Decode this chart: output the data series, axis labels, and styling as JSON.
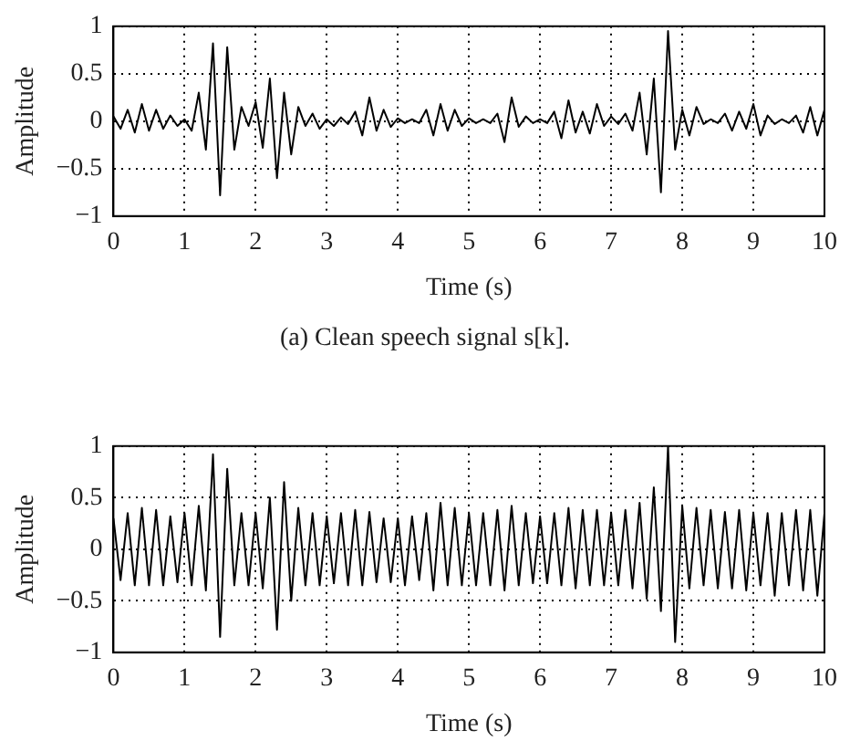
{
  "chart_data": [
    {
      "type": "line",
      "xlabel": "Time (s)",
      "ylabel": "Amplitude",
      "xlim": [
        0,
        10
      ],
      "xticks": [
        0,
        1,
        2,
        3,
        4,
        5,
        6,
        7,
        8,
        9,
        10
      ],
      "ylim": [
        -1,
        1
      ],
      "yticks": [
        -1,
        -0.5,
        0,
        0.5,
        1
      ],
      "grid": true,
      "marker": "none",
      "line_style": "solid",
      "annotations": [
        "(a) Clean speech signal s[k]."
      ],
      "x": [
        0,
        0.1,
        0.2,
        0.3,
        0.4,
        0.5,
        0.6,
        0.7,
        0.8,
        0.9,
        1,
        1.1,
        1.2,
        1.3,
        1.4,
        1.5,
        1.6,
        1.7,
        1.8,
        1.9,
        2,
        2.1,
        2.2,
        2.3,
        2.4,
        2.5,
        2.6,
        2.7,
        2.8,
        2.9,
        3,
        3.1,
        3.2,
        3.3,
        3.4,
        3.5,
        3.6,
        3.7,
        3.8,
        3.9,
        4,
        4.1,
        4.2,
        4.3,
        4.4,
        4.5,
        4.6,
        4.7,
        4.8,
        4.9,
        5,
        5.1,
        5.2,
        5.3,
        5.4,
        5.5,
        5.6,
        5.7,
        5.8,
        5.9,
        6,
        6.1,
        6.2,
        6.3,
        6.4,
        6.5,
        6.6,
        6.7,
        6.8,
        6.9,
        7,
        7.1,
        7.2,
        7.3,
        7.4,
        7.5,
        7.6,
        7.7,
        7.8,
        7.9,
        8,
        8.1,
        8.2,
        8.3,
        8.4,
        8.5,
        8.6,
        8.7,
        8.8,
        8.9,
        9,
        9.1,
        9.2,
        9.3,
        9.4,
        9.5,
        9.6,
        9.7,
        9.8,
        9.9,
        10
      ],
      "series": [
        {
          "color": "#000000",
          "values": [
            0.05,
            -0.08,
            0.12,
            -0.12,
            0.18,
            -0.1,
            0.12,
            -0.08,
            0.06,
            -0.05,
            0.02,
            -0.1,
            0.3,
            -0.3,
            0.82,
            -0.78,
            0.78,
            -0.3,
            0.15,
            -0.05,
            0.2,
            -0.28,
            0.45,
            -0.6,
            0.3,
            -0.35,
            0.15,
            -0.05,
            0.08,
            -0.08,
            0.02,
            -0.05,
            0.04,
            -0.03,
            0.1,
            -0.15,
            0.25,
            -0.1,
            0.12,
            -0.06,
            0.03,
            -0.02,
            0.02,
            -0.02,
            0.12,
            -0.15,
            0.18,
            -0.1,
            0.12,
            -0.05,
            0.03,
            -0.02,
            0.02,
            -0.02,
            0.08,
            -0.22,
            0.25,
            -0.06,
            0.05,
            -0.02,
            0.02,
            -0.02,
            0.1,
            -0.18,
            0.22,
            -0.12,
            0.1,
            -0.13,
            0.18,
            -0.05,
            0.05,
            -0.03,
            0.08,
            -0.1,
            0.3,
            -0.35,
            0.45,
            -0.75,
            0.95,
            -0.3,
            0.12,
            -0.15,
            0.15,
            -0.03,
            0.02,
            -0.02,
            0.08,
            -0.1,
            0.1,
            -0.08,
            0.18,
            -0.15,
            0.06,
            -0.03,
            0.02,
            -0.02,
            0.06,
            -0.12,
            0.15,
            -0.15,
            0.12
          ]
        }
      ]
    },
    {
      "type": "line",
      "xlabel": "Time (s)",
      "ylabel": "Amplitude",
      "xlim": [
        0,
        10
      ],
      "xticks": [
        0,
        1,
        2,
        3,
        4,
        5,
        6,
        7,
        8,
        9,
        10
      ],
      "ylim": [
        -1,
        1
      ],
      "yticks": [
        -1,
        -0.5,
        0,
        0.5,
        1
      ],
      "grid": true,
      "marker": "none",
      "line_style": "solid",
      "x": [
        0,
        0.1,
        0.2,
        0.3,
        0.4,
        0.5,
        0.6,
        0.7,
        0.8,
        0.9,
        1,
        1.1,
        1.2,
        1.3,
        1.4,
        1.5,
        1.6,
        1.7,
        1.8,
        1.9,
        2,
        2.1,
        2.2,
        2.3,
        2.4,
        2.5,
        2.6,
        2.7,
        2.8,
        2.9,
        3,
        3.1,
        3.2,
        3.3,
        3.4,
        3.5,
        3.6,
        3.7,
        3.8,
        3.9,
        4,
        4.1,
        4.2,
        4.3,
        4.4,
        4.5,
        4.6,
        4.7,
        4.8,
        4.9,
        5,
        5.1,
        5.2,
        5.3,
        5.4,
        5.5,
        5.6,
        5.7,
        5.8,
        5.9,
        6,
        6.1,
        6.2,
        6.3,
        6.4,
        6.5,
        6.6,
        6.7,
        6.8,
        6.9,
        7,
        7.1,
        7.2,
        7.3,
        7.4,
        7.5,
        7.6,
        7.7,
        7.8,
        7.9,
        8,
        8.1,
        8.2,
        8.3,
        8.4,
        8.5,
        8.6,
        8.7,
        8.8,
        8.9,
        9,
        9.1,
        9.2,
        9.3,
        9.4,
        9.5,
        9.6,
        9.7,
        9.8,
        9.9,
        10
      ],
      "series": [
        {
          "color": "#000000",
          "values": [
            0.3,
            -0.3,
            0.35,
            -0.35,
            0.4,
            -0.35,
            0.38,
            -0.35,
            0.32,
            -0.32,
            0.35,
            -0.35,
            0.42,
            -0.4,
            0.92,
            -0.85,
            0.78,
            -0.35,
            0.35,
            -0.35,
            0.35,
            -0.38,
            0.5,
            -0.78,
            0.65,
            -0.5,
            0.4,
            -0.35,
            0.35,
            -0.35,
            0.32,
            -0.33,
            0.35,
            -0.35,
            0.38,
            -0.35,
            0.36,
            -0.32,
            0.3,
            -0.32,
            0.3,
            -0.35,
            0.32,
            -0.3,
            0.35,
            -0.4,
            0.45,
            -0.35,
            0.4,
            -0.35,
            0.35,
            -0.35,
            0.35,
            -0.35,
            0.38,
            -0.4,
            0.42,
            -0.35,
            0.35,
            -0.33,
            0.32,
            -0.33,
            0.35,
            -0.35,
            0.4,
            -0.38,
            0.38,
            -0.35,
            0.38,
            -0.35,
            0.35,
            -0.35,
            0.38,
            -0.38,
            0.45,
            -0.48,
            0.6,
            -0.6,
            1.0,
            -0.9,
            0.42,
            -0.38,
            0.4,
            -0.35,
            0.38,
            -0.38,
            0.36,
            -0.38,
            0.38,
            -0.4,
            0.35,
            -0.35,
            0.35,
            -0.45,
            0.35,
            -0.35,
            0.38,
            -0.4,
            0.38,
            -0.45,
            0.35
          ]
        }
      ]
    }
  ]
}
